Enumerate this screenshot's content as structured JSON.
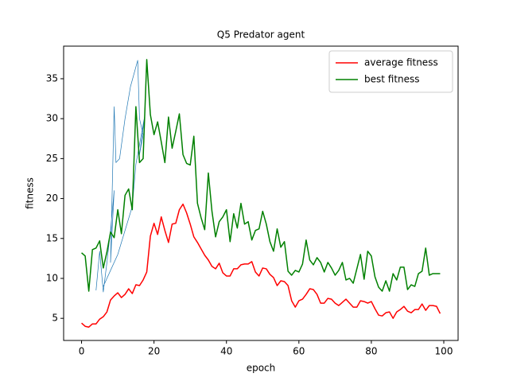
{
  "chart_data": {
    "type": "line",
    "title": "Q5 Predator agent",
    "xlabel": "epoch",
    "ylabel": "fitness",
    "x": [
      0,
      1,
      2,
      3,
      4,
      5,
      6,
      7,
      8,
      9,
      10,
      11,
      12,
      13,
      14,
      15,
      16,
      17,
      18,
      19,
      20,
      21,
      22,
      23,
      24,
      25,
      26,
      27,
      28,
      29,
      30,
      31,
      32,
      33,
      34,
      35,
      36,
      37,
      38,
      39,
      40,
      41,
      42,
      43,
      44,
      45,
      46,
      47,
      48,
      49,
      50,
      51,
      52,
      53,
      54,
      55,
      56,
      57,
      58,
      59,
      60,
      61,
      62,
      63,
      64,
      65,
      66,
      67,
      68,
      69,
      70,
      71,
      72,
      73,
      74,
      75,
      76,
      77,
      78,
      79,
      80,
      81,
      82,
      83,
      84,
      85,
      86,
      87,
      88,
      89,
      90,
      91,
      92,
      93,
      94,
      95,
      96,
      97,
      98,
      99
    ],
    "series": [
      {
        "color": "#1f77b4",
        "x": [
          4,
          5,
          6,
          7,
          8,
          9,
          8,
          9,
          9.5,
          10.5,
          12,
          13.5,
          15.5,
          16,
          17,
          16,
          17.5,
          15,
          14,
          12,
          10,
          8,
          6
        ],
        "values": [
          8.5,
          13.4,
          8.3,
          12,
          16,
          21,
          12,
          31.5,
          24.5,
          25,
          30,
          34,
          37.3,
          30,
          28,
          25.5,
          30.5,
          24.3,
          19,
          16,
          13,
          11,
          9
        ]
      },
      {
        "name": "average fitness",
        "color": "#ff0000",
        "values": [
          4.4,
          4.0,
          3.9,
          4.3,
          4.3,
          4.9,
          5.2,
          5.8,
          7.3,
          7.8,
          8.2,
          7.6,
          8.0,
          8.7,
          8.1,
          9.2,
          9.1,
          9.8,
          10.8,
          15.3,
          16.9,
          15.5,
          17.7,
          16.0,
          14.5,
          16.8,
          16.9,
          18.6,
          19.3,
          18.2,
          16.8,
          15.2,
          14.5,
          13.7,
          12.9,
          12.3,
          11.5,
          11.2,
          11.9,
          10.7,
          10.3,
          10.3,
          11.2,
          11.2,
          11.7,
          11.8,
          11.8,
          12.1,
          10.8,
          10.3,
          11.3,
          11.2,
          10.5,
          10.1,
          9.1,
          9.7,
          9.6,
          9.1,
          7.2,
          6.4,
          7.2,
          7.4,
          8.0,
          8.7,
          8.6,
          8.0,
          6.9,
          6.9,
          7.5,
          7.4,
          6.9,
          6.6,
          7.0,
          7.4,
          6.9,
          6.4,
          6.4,
          7.2,
          7.1,
          6.9,
          7.1,
          6.2,
          5.4,
          5.3,
          5.7,
          5.8,
          5.0,
          5.8,
          6.1,
          6.5,
          5.9,
          5.7,
          6.1,
          6.1,
          6.8,
          6.0,
          6.6,
          6.6,
          6.5,
          5.6
        ]
      },
      {
        "name": "best fitness",
        "color": "#008000",
        "values": [
          13.2,
          12.8,
          8.4,
          13.6,
          13.8,
          14.7,
          11.3,
          13.3,
          15.8,
          15.1,
          18.6,
          15.6,
          20.4,
          21.2,
          18.6,
          31.5,
          24.5,
          25.0,
          37.4,
          30.5,
          28.0,
          29.6,
          27.1,
          24.5,
          30.2,
          26.3,
          28.4,
          30.6,
          25.5,
          24.4,
          24.2,
          27.8,
          19.4,
          17.6,
          16.1,
          23.2,
          18.4,
          15.2,
          17.1,
          17.7,
          18.6,
          14.6,
          18.1,
          16.3,
          19.4,
          16.8,
          17.1,
          14.8,
          16.0,
          16.2,
          18.4,
          16.8,
          14.6,
          13.4,
          16.2,
          13.9,
          14.6,
          10.9,
          10.4,
          11.0,
          10.8,
          11.8,
          14.8,
          12.3,
          11.7,
          12.6,
          12.0,
          10.8,
          12.0,
          11.3,
          10.4,
          11.0,
          12.0,
          9.8,
          10.0,
          9.4,
          11.2,
          13.0,
          9.9,
          13.4,
          12.8,
          10.2,
          8.9,
          8.4,
          9.7,
          8.4,
          10.6,
          9.8,
          11.4,
          11.4,
          8.6,
          9.2,
          9.0,
          10.6,
          10.9,
          13.8,
          10.4,
          10.6,
          10.6,
          10.6
        ]
      }
    ],
    "xlim": [
      -4.95,
      103.95
    ],
    "xticks": [
      0,
      20,
      40,
      60,
      80,
      100
    ],
    "ylim": [
      2.23,
      39.08
    ],
    "yticks": [
      5,
      10,
      15,
      20,
      25,
      30,
      35
    ],
    "legend": "upper right"
  }
}
